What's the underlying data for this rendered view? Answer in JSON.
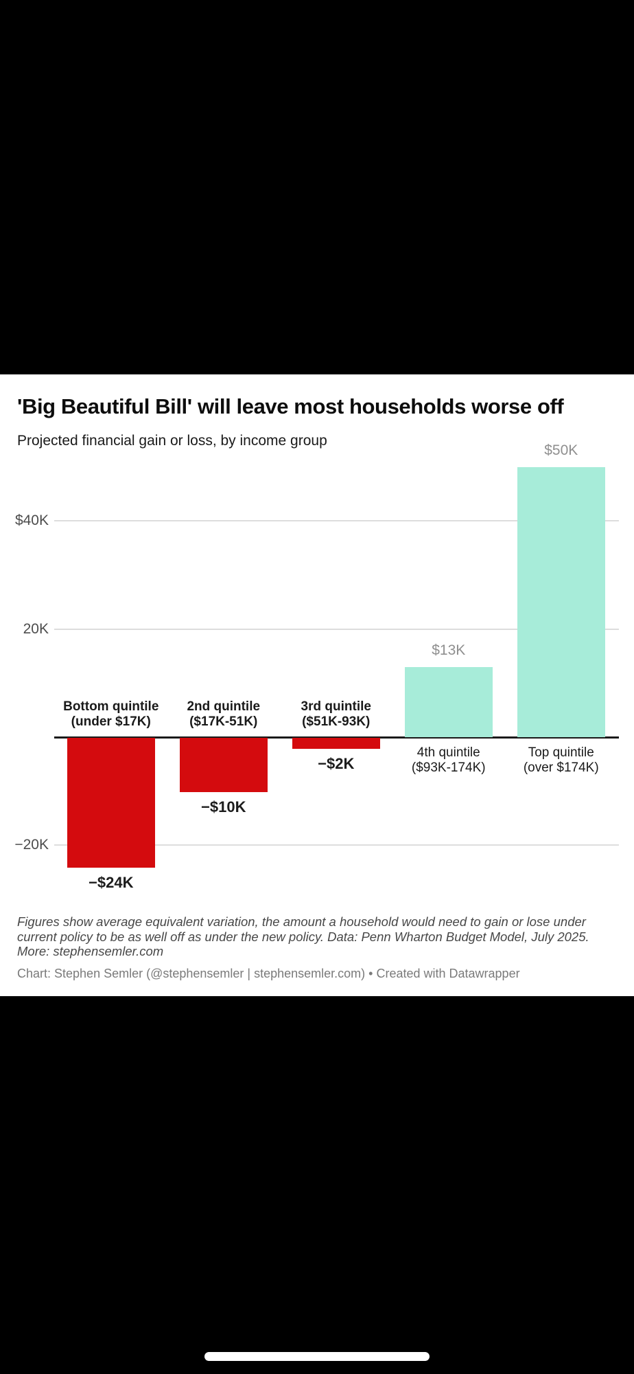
{
  "page": {
    "background": "#000000",
    "card_background": "#ffffff"
  },
  "header": {
    "title": "'Big Beautiful Bill' will leave most households worse off",
    "subtitle": "Projected financial gain or loss, by income group",
    "title_color": "#0d0d0d",
    "subtitle_color": "#1a1a1a"
  },
  "chart_data": {
    "type": "bar",
    "title": "'Big Beautiful Bill' will leave most households worse off",
    "subtitle": "Projected financial gain or loss, by income group",
    "unit": "thousand US dollars",
    "categories": [
      [
        "Bottom quintile",
        "(under $17K)"
      ],
      [
        "2nd quintile",
        "($17K-51K)"
      ],
      [
        "3rd quintile",
        "($51K-93K)"
      ],
      [
        "4th quintile",
        "($93K-174K)"
      ],
      [
        "Top quintile",
        "(over $174K)"
      ]
    ],
    "values": [
      -24,
      -10,
      -2,
      13,
      50
    ],
    "value_labels": [
      "−$24K",
      "−$10K",
      "−$2K",
      "$13K",
      "$50K"
    ],
    "y_ticks": [
      {
        "label": "$40K",
        "value": 40
      },
      {
        "label": "20K",
        "value": 20
      },
      {
        "label": "−20K",
        "value": -20
      }
    ],
    "ylim": [
      -29,
      57
    ],
    "grid": true,
    "legend": "none",
    "colors": {
      "negative_bar": "#d40b0e",
      "positive_bar": "#a7ecd9",
      "gridline": "#dddddd",
      "zero_line": "#1a1a1a",
      "axis_tick_label": "#4d4d4d",
      "negative_value_label": "#1c1c1c",
      "positive_value_label": "#8f8f8f",
      "category_label": "#1a1a1a"
    }
  },
  "footer": {
    "note_lines": [
      "Figures show average equivalent variation, the amount a household would need to gain or lose under",
      "current policy to be as well off as under the new policy. Data: Penn Wharton Budget Model, July 2025.",
      "More: stephensemler.com"
    ],
    "note_color": "#474747",
    "credit": "Chart: Stephen Semler (@stephensemler | stephensemler.com) • Created with Datawrapper",
    "credit_color": "#7a7a7a"
  },
  "system": {
    "home_indicator_color": "#ffffff"
  }
}
